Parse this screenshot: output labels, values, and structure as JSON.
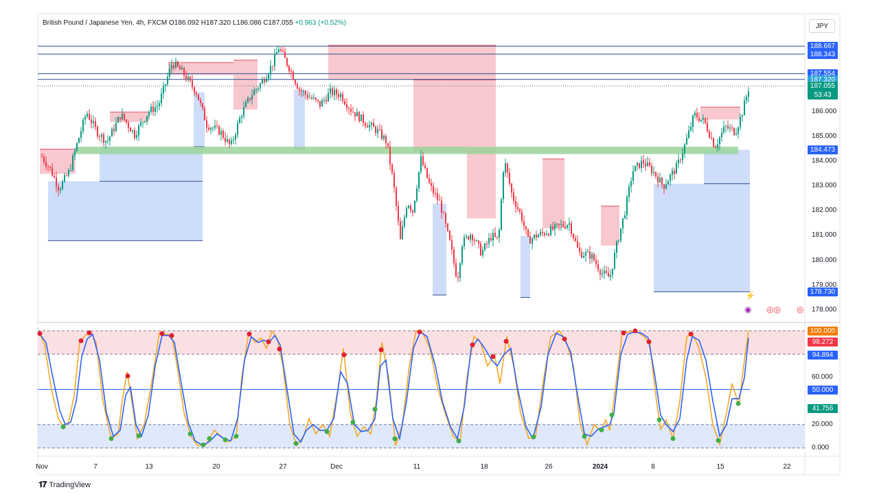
{
  "header": {
    "symbol": "British Pound / Japanese Yen, 4h, FXCM",
    "ohlc": "O186.092  H187.320  L186.086  C187.055",
    "change": "+0.963 (+0.52%)"
  },
  "currency": "JPY",
  "brand": "TradingView",
  "colors": {
    "up": "#089981",
    "down": "#f23645",
    "up_wick": "#26a69a",
    "supply_zone": "#f7b6bd",
    "demand_zone": "#bdd2f8",
    "support_band": "#9bd39b",
    "hline": "#2a4d8f",
    "stoch_k": "#f5a623",
    "stoch_d": "#2962ff"
  },
  "price_tags": [
    {
      "label": "188.667",
      "price": 188.667,
      "color": "#2962ff"
    },
    {
      "label": "188.343",
      "price": 188.343,
      "color": "#2962ff"
    },
    {
      "label": "187.554",
      "price": 187.554,
      "color": "#2962ff"
    },
    {
      "label": "187.320",
      "price": 187.32,
      "color": "#29a3d6"
    },
    {
      "label": "187.320",
      "price": 187.32,
      "color": "#2962ff",
      "offset": 13
    },
    {
      "label": "187.055",
      "price": 187.055,
      "color": "#089981"
    },
    {
      "label": "53:43",
      "price": 187.055,
      "color": "#089981",
      "offset": 13
    },
    {
      "label": "184.473",
      "price": 184.473,
      "color": "#2962ff"
    },
    {
      "label": "178.730",
      "price": 178.73,
      "color": "#2962ff"
    }
  ],
  "osc_tags": [
    {
      "label": "100.000",
      "value": 100,
      "color": "#f57c00"
    },
    {
      "label": "98.272",
      "value": 98.272,
      "color": "#f23645",
      "offset": 13
    },
    {
      "label": "94.894",
      "value": 94.894,
      "color": "#2962ff",
      "offset": 26
    },
    {
      "label": "50.000",
      "value": 50,
      "color": "#2962ff"
    },
    {
      "label": "41.756",
      "value": 41.756,
      "color": "#089981",
      "offset": 13
    }
  ],
  "chart_data": {
    "type": "candlestick",
    "title": "British Pound / Japanese Yen, 4h, FXCM",
    "price_axis": {
      "ticks": [
        "186.000",
        "185.000",
        "184.000",
        "183.000",
        "182.000",
        "181.000",
        "180.000",
        "179.000",
        "178.000"
      ],
      "range": [
        177.6,
        189.2
      ]
    },
    "osc_axis": {
      "ticks": [
        "60.000",
        "20.000",
        "0.000"
      ],
      "range": [
        -3,
        103
      ]
    },
    "x_ticks": [
      {
        "label": "Nov",
        "x": 61
      },
      {
        "label": "7",
        "x": 139
      },
      {
        "label": "13",
        "x": 217
      },
      {
        "label": "20",
        "x": 315
      },
      {
        "label": "27",
        "x": 412
      },
      {
        "label": "Dec",
        "x": 490
      },
      {
        "label": "11",
        "x": 607
      },
      {
        "label": "18",
        "x": 705
      },
      {
        "label": "26",
        "x": 799
      },
      {
        "label": "2024",
        "x": 874
      },
      {
        "label": "8",
        "x": 951
      },
      {
        "label": "15",
        "x": 1049
      },
      {
        "label": "22",
        "x": 1146
      }
    ],
    "price_path": [
      [
        60,
        184.2
      ],
      [
        72,
        183.7
      ],
      [
        85,
        182.9
      ],
      [
        100,
        183.6
      ],
      [
        110,
        184.6
      ],
      [
        125,
        186.0
      ],
      [
        140,
        185.2
      ],
      [
        155,
        184.8
      ],
      [
        175,
        185.9
      ],
      [
        195,
        185.1
      ],
      [
        215,
        186.0
      ],
      [
        230,
        186.3
      ],
      [
        250,
        188.0
      ],
      [
        265,
        187.6
      ],
      [
        285,
        186.8
      ],
      [
        300,
        185.5
      ],
      [
        320,
        185.2
      ],
      [
        335,
        184.6
      ],
      [
        350,
        185.9
      ],
      [
        365,
        186.7
      ],
      [
        380,
        187.2
      ],
      [
        395,
        187.9
      ],
      [
        405,
        188.6
      ],
      [
        420,
        187.8
      ],
      [
        435,
        186.9
      ],
      [
        450,
        186.6
      ],
      [
        465,
        186.3
      ],
      [
        480,
        186.8
      ],
      [
        495,
        186.7
      ],
      [
        510,
        186.1
      ],
      [
        530,
        185.6
      ],
      [
        550,
        185.2
      ],
      [
        562,
        184.8
      ],
      [
        572,
        183.1
      ],
      [
        582,
        180.8
      ],
      [
        592,
        182.4
      ],
      [
        600,
        182.0
      ],
      [
        612,
        184.1
      ],
      [
        625,
        183.0
      ],
      [
        640,
        182.3
      ],
      [
        655,
        180.6
      ],
      [
        665,
        179.2
      ],
      [
        672,
        180.7
      ],
      [
        685,
        181.1
      ],
      [
        700,
        180.3
      ],
      [
        715,
        181.0
      ],
      [
        725,
        180.8
      ],
      [
        733,
        184.1
      ],
      [
        745,
        182.6
      ],
      [
        758,
        181.8
      ],
      [
        768,
        180.8
      ],
      [
        780,
        181.0
      ],
      [
        800,
        181.2
      ],
      [
        815,
        181.4
      ],
      [
        828,
        181.5
      ],
      [
        842,
        180.3
      ],
      [
        860,
        180.2
      ],
      [
        875,
        179.5
      ],
      [
        887,
        179.3
      ],
      [
        897,
        180.6
      ],
      [
        910,
        182.1
      ],
      [
        920,
        183.6
      ],
      [
        935,
        184.0
      ],
      [
        950,
        183.6
      ],
      [
        965,
        183.0
      ],
      [
        985,
        183.8
      ],
      [
        998,
        184.8
      ],
      [
        1010,
        185.9
      ],
      [
        1025,
        185.6
      ],
      [
        1040,
        184.6
      ],
      [
        1055,
        185.4
      ],
      [
        1070,
        185.2
      ],
      [
        1080,
        186.0
      ],
      [
        1090,
        187.05
      ]
    ],
    "supply_zones": [
      {
        "x1": 58,
        "x2": 110,
        "top": 184.5,
        "bottom": 183.5
      },
      {
        "x1": 160,
        "x2": 217,
        "top": 186.0,
        "bottom": 185.6
      },
      {
        "x1": 245,
        "x2": 340,
        "top": 188.0,
        "bottom": 187.5
      },
      {
        "x1": 340,
        "x2": 375,
        "top": 188.1,
        "bottom": 186.1
      },
      {
        "x1": 478,
        "x2": 722,
        "top": 188.7,
        "bottom": 187.3
      },
      {
        "x1": 602,
        "x2": 722,
        "top": 187.3,
        "bottom": 184.4
      },
      {
        "x1": 680,
        "x2": 722,
        "top": 184.4,
        "bottom": 181.7
      },
      {
        "x1": 790,
        "x2": 822,
        "top": 184.1,
        "bottom": 181.3
      },
      {
        "x1": 875,
        "x2": 902,
        "top": 182.2,
        "bottom": 180.6
      },
      {
        "x1": 1020,
        "x2": 1078,
        "top": 186.2,
        "bottom": 185.7
      }
    ],
    "demand_zones": [
      {
        "x1": 70,
        "x2": 295,
        "top": 183.2,
        "bottom": 180.8
      },
      {
        "x1": 145,
        "x2": 295,
        "top": 184.6,
        "bottom": 183.2
      },
      {
        "x1": 282,
        "x2": 298,
        "top": 186.8,
        "bottom": 184.6
      },
      {
        "x1": 428,
        "x2": 444,
        "top": 186.9,
        "bottom": 184.5
      },
      {
        "x1": 630,
        "x2": 650,
        "top": 182.3,
        "bottom": 178.6
      },
      {
        "x1": 758,
        "x2": 772,
        "top": 181.0,
        "bottom": 178.5
      },
      {
        "x1": 952,
        "x2": 1092,
        "top": 183.1,
        "bottom": 178.73
      },
      {
        "x1": 1025,
        "x2": 1092,
        "top": 184.47,
        "bottom": 183.1
      }
    ],
    "support_band": {
      "x1": 110,
      "x2": 1075,
      "top": 184.6,
      "bottom": 184.3
    },
    "levels": [
      {
        "price": 188.667,
        "x1": 55,
        "x2": 1172,
        "style": "solid"
      },
      {
        "price": 188.343,
        "x1": 55,
        "x2": 1172,
        "style": "solid"
      },
      {
        "price": 187.554,
        "x1": 55,
        "x2": 1172,
        "style": "solid"
      },
      {
        "price": 187.32,
        "x1": 55,
        "x2": 1172,
        "style": "solid"
      },
      {
        "price": 187.055,
        "x1": 55,
        "x2": 1172,
        "style": "dotted"
      }
    ],
    "stoch_k": [
      [
        57,
        99
      ],
      [
        65,
        88
      ],
      [
        75,
        50
      ],
      [
        85,
        25
      ],
      [
        92,
        18
      ],
      [
        100,
        22
      ],
      [
        108,
        45
      ],
      [
        116,
        90
      ],
      [
        124,
        96
      ],
      [
        132,
        99
      ],
      [
        140,
        90
      ],
      [
        150,
        40
      ],
      [
        162,
        8
      ],
      [
        172,
        12
      ],
      [
        178,
        40
      ],
      [
        185,
        65
      ],
      [
        192,
        40
      ],
      [
        200,
        8
      ],
      [
        210,
        20
      ],
      [
        222,
        60
      ],
      [
        232,
        98
      ],
      [
        242,
        97
      ],
      [
        250,
        96
      ],
      [
        258,
        70
      ],
      [
        268,
        30
      ],
      [
        278,
        10
      ],
      [
        288,
        2
      ],
      [
        300,
        3
      ],
      [
        312,
        15
      ],
      [
        322,
        10
      ],
      [
        332,
        5
      ],
      [
        344,
        10
      ],
      [
        352,
        60
      ],
      [
        362,
        98
      ],
      [
        372,
        90
      ],
      [
        380,
        94
      ],
      [
        388,
        85
      ],
      [
        396,
        100
      ],
      [
        404,
        93
      ],
      [
        412,
        70
      ],
      [
        422,
        20
      ],
      [
        432,
        2
      ],
      [
        442,
        10
      ],
      [
        450,
        25
      ],
      [
        460,
        12
      ],
      [
        470,
        20
      ],
      [
        480,
        10
      ],
      [
        492,
        50
      ],
      [
        500,
        85
      ],
      [
        510,
        30
      ],
      [
        520,
        10
      ],
      [
        530,
        18
      ],
      [
        540,
        12
      ],
      [
        548,
        40
      ],
      [
        556,
        90
      ],
      [
        566,
        60
      ],
      [
        576,
        2
      ],
      [
        586,
        20
      ],
      [
        596,
        70
      ],
      [
        606,
        100
      ],
      [
        616,
        98
      ],
      [
        626,
        85
      ],
      [
        638,
        50
      ],
      [
        648,
        30
      ],
      [
        660,
        10
      ],
      [
        670,
        5
      ],
      [
        680,
        60
      ],
      [
        690,
        95
      ],
      [
        700,
        90
      ],
      [
        710,
        70
      ],
      [
        720,
        80
      ],
      [
        728,
        55
      ],
      [
        738,
        95
      ],
      [
        748,
        70
      ],
      [
        758,
        30
      ],
      [
        770,
        8
      ],
      [
        780,
        10
      ],
      [
        792,
        60
      ],
      [
        802,
        95
      ],
      [
        815,
        100
      ],
      [
        825,
        90
      ],
      [
        835,
        70
      ],
      [
        845,
        20
      ],
      [
        855,
        3
      ],
      [
        865,
        20
      ],
      [
        875,
        14
      ],
      [
        882,
        24
      ],
      [
        888,
        15
      ],
      [
        896,
        50
      ],
      [
        906,
        98
      ],
      [
        916,
        99
      ],
      [
        926,
        100
      ],
      [
        936,
        96
      ],
      [
        946,
        90
      ],
      [
        956,
        40
      ],
      [
        962,
        16
      ],
      [
        970,
        24
      ],
      [
        980,
        8
      ],
      [
        990,
        40
      ],
      [
        1000,
        95
      ],
      [
        1008,
        98
      ],
      [
        1018,
        85
      ],
      [
        1028,
        60
      ],
      [
        1038,
        20
      ],
      [
        1048,
        3
      ],
      [
        1058,
        30
      ],
      [
        1066,
        55
      ],
      [
        1076,
        36
      ],
      [
        1084,
        75
      ],
      [
        1090,
        100
      ]
    ],
    "stoch_d": [
      [
        57,
        98
      ],
      [
        67,
        90
      ],
      [
        77,
        60
      ],
      [
        87,
        32
      ],
      [
        95,
        20
      ],
      [
        103,
        22
      ],
      [
        111,
        40
      ],
      [
        119,
        78
      ],
      [
        127,
        93
      ],
      [
        135,
        97
      ],
      [
        145,
        75
      ],
      [
        155,
        30
      ],
      [
        165,
        10
      ],
      [
        175,
        15
      ],
      [
        183,
        45
      ],
      [
        190,
        52
      ],
      [
        198,
        20
      ],
      [
        206,
        10
      ],
      [
        216,
        28
      ],
      [
        226,
        70
      ],
      [
        236,
        96
      ],
      [
        246,
        96
      ],
      [
        254,
        90
      ],
      [
        264,
        55
      ],
      [
        274,
        22
      ],
      [
        284,
        6
      ],
      [
        296,
        2
      ],
      [
        306,
        6
      ],
      [
        316,
        12
      ],
      [
        326,
        8
      ],
      [
        336,
        6
      ],
      [
        346,
        25
      ],
      [
        356,
        75
      ],
      [
        366,
        95
      ],
      [
        376,
        90
      ],
      [
        384,
        92
      ],
      [
        392,
        90
      ],
      [
        400,
        96
      ],
      [
        408,
        88
      ],
      [
        418,
        50
      ],
      [
        428,
        12
      ],
      [
        438,
        5
      ],
      [
        446,
        15
      ],
      [
        456,
        20
      ],
      [
        466,
        15
      ],
      [
        476,
        15
      ],
      [
        486,
        25
      ],
      [
        496,
        65
      ],
      [
        506,
        55
      ],
      [
        516,
        20
      ],
      [
        526,
        14
      ],
      [
        536,
        15
      ],
      [
        546,
        25
      ],
      [
        554,
        70
      ],
      [
        562,
        75
      ],
      [
        572,
        25
      ],
      [
        582,
        8
      ],
      [
        592,
        40
      ],
      [
        602,
        85
      ],
      [
        612,
        99
      ],
      [
        622,
        95
      ],
      [
        634,
        70
      ],
      [
        644,
        40
      ],
      [
        656,
        18
      ],
      [
        666,
        8
      ],
      [
        676,
        35
      ],
      [
        686,
        85
      ],
      [
        696,
        93
      ],
      [
        706,
        85
      ],
      [
        716,
        75
      ],
      [
        724,
        70
      ],
      [
        734,
        80
      ],
      [
        744,
        85
      ],
      [
        754,
        50
      ],
      [
        766,
        18
      ],
      [
        776,
        8
      ],
      [
        788,
        35
      ],
      [
        798,
        80
      ],
      [
        810,
        98
      ],
      [
        820,
        95
      ],
      [
        831,
        82
      ],
      [
        841,
        45
      ],
      [
        851,
        12
      ],
      [
        861,
        10
      ],
      [
        871,
        16
      ],
      [
        880,
        18
      ],
      [
        888,
        20
      ],
      [
        894,
        30
      ],
      [
        904,
        80
      ],
      [
        914,
        97
      ],
      [
        924,
        99
      ],
      [
        934,
        98
      ],
      [
        944,
        94
      ],
      [
        954,
        60
      ],
      [
        962,
        28
      ],
      [
        970,
        20
      ],
      [
        980,
        14
      ],
      [
        990,
        25
      ],
      [
        1000,
        75
      ],
      [
        1008,
        95
      ],
      [
        1018,
        92
      ],
      [
        1028,
        75
      ],
      [
        1038,
        40
      ],
      [
        1048,
        10
      ],
      [
        1058,
        20
      ],
      [
        1066,
        42
      ],
      [
        1076,
        42
      ],
      [
        1084,
        60
      ],
      [
        1090,
        94
      ]
    ],
    "overbought": {
      "upper": 100,
      "lower": 80
    },
    "oversold": {
      "upper": 20,
      "lower": 0
    },
    "midline": 50,
    "sell_signals_x": [
      58,
      118,
      130,
      186,
      236,
      250,
      363,
      391,
      407,
      501,
      555,
      611,
      688,
      718,
      737,
      822,
      908,
      925,
      945,
      1006
    ],
    "buy_signals_x": [
      92,
      162,
      202,
      277,
      296,
      305,
      328,
      344,
      431,
      476,
      514,
      546,
      575,
      668,
      777,
      851,
      876,
      891,
      960,
      980,
      1046,
      1075
    ]
  }
}
